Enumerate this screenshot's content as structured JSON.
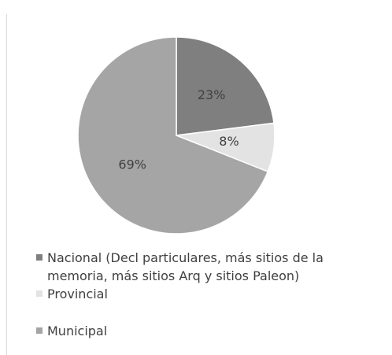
{
  "chart_data": {
    "type": "pie",
    "categories": [
      "Nacional (Decl particulares, más sitios de la memoria, más sitios Arq y sitios Paleon)",
      "Provincial",
      "Municipal"
    ],
    "values": [
      23,
      8,
      69
    ],
    "value_labels": [
      "23%",
      "8%",
      "69%"
    ],
    "colors": [
      "#7f7f7f",
      "#e3e3e3",
      "#a5a5a5"
    ],
    "legend": "bottom"
  }
}
